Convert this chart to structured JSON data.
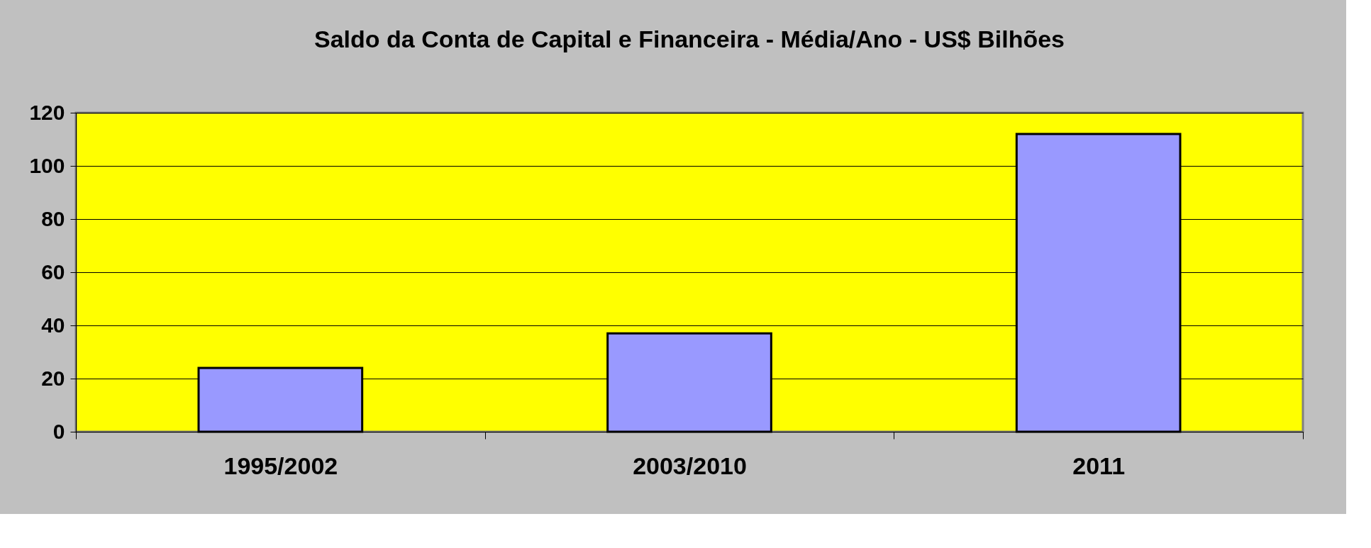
{
  "chart_data": {
    "type": "bar",
    "title": "Saldo da Conta de Capital e Financeira - Média/Ano - US$ Bilhões",
    "categories": [
      "1995/2002",
      "2003/2010",
      "2011"
    ],
    "values": [
      24,
      37,
      112
    ],
    "color": "#9999ff",
    "ylim": [
      0,
      120
    ],
    "yticks": [
      0,
      20,
      40,
      60,
      80,
      100,
      120
    ],
    "grid": "y"
  }
}
